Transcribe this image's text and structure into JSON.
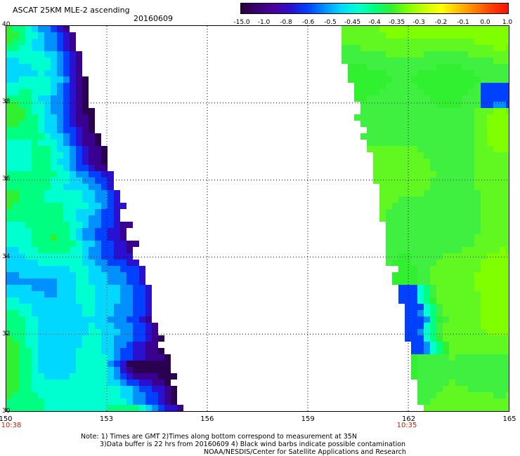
{
  "header": {
    "title": "ASCAT 25KM MLE-2 ascending",
    "date": "20160609"
  },
  "colorbar": {
    "labels": [
      "-15.0",
      "-1.0",
      "-0.8",
      "-0.6",
      "-0.5",
      "-0.45",
      "-0.4",
      "-0.35",
      "-0.3",
      "-0.2",
      "-0.1",
      "0.0",
      "1.0"
    ],
    "colors": [
      "#2a0040",
      "#3a0070",
      "#4a00a0",
      "#2a10d0",
      "#0040ff",
      "#0090ff",
      "#00d8ff",
      "#00ffd0",
      "#00ff80",
      "#30f030",
      "#80ff00",
      "#c8ff00",
      "#ffff00",
      "#ffc000",
      "#ff8000",
      "#ff4000",
      "#ff1000"
    ]
  },
  "axes": {
    "x_ticks": [
      "150",
      "153",
      "156",
      "159",
      "162",
      "165"
    ],
    "y_ticks": [
      "40",
      "38",
      "36",
      "34",
      "32",
      "30"
    ],
    "time_left": "10:38",
    "time_right": "10:35"
  },
  "notes": {
    "line1": "Note: 1) Times are GMT 2)Times along bottom correspond to measurement at 35N",
    "line2": "3)Data buffer is 22 hrs from 20160609 4) Black wind barbs indicate possible contamination",
    "line3": "NOAA/NESDIS/Center for Satellite Applications and Research"
  },
  "map": {
    "lon_range": [
      150,
      165
    ],
    "lat_range": [
      30,
      40
    ],
    "left_swath_edge_lon_at_lat40": 151.8,
    "left_swath_edge_lon_at_lat30": 155.2,
    "right_swath_edge_lon_at_lat40": 159.8,
    "right_swath_edge_lon_at_lat30": 162.3
  }
}
